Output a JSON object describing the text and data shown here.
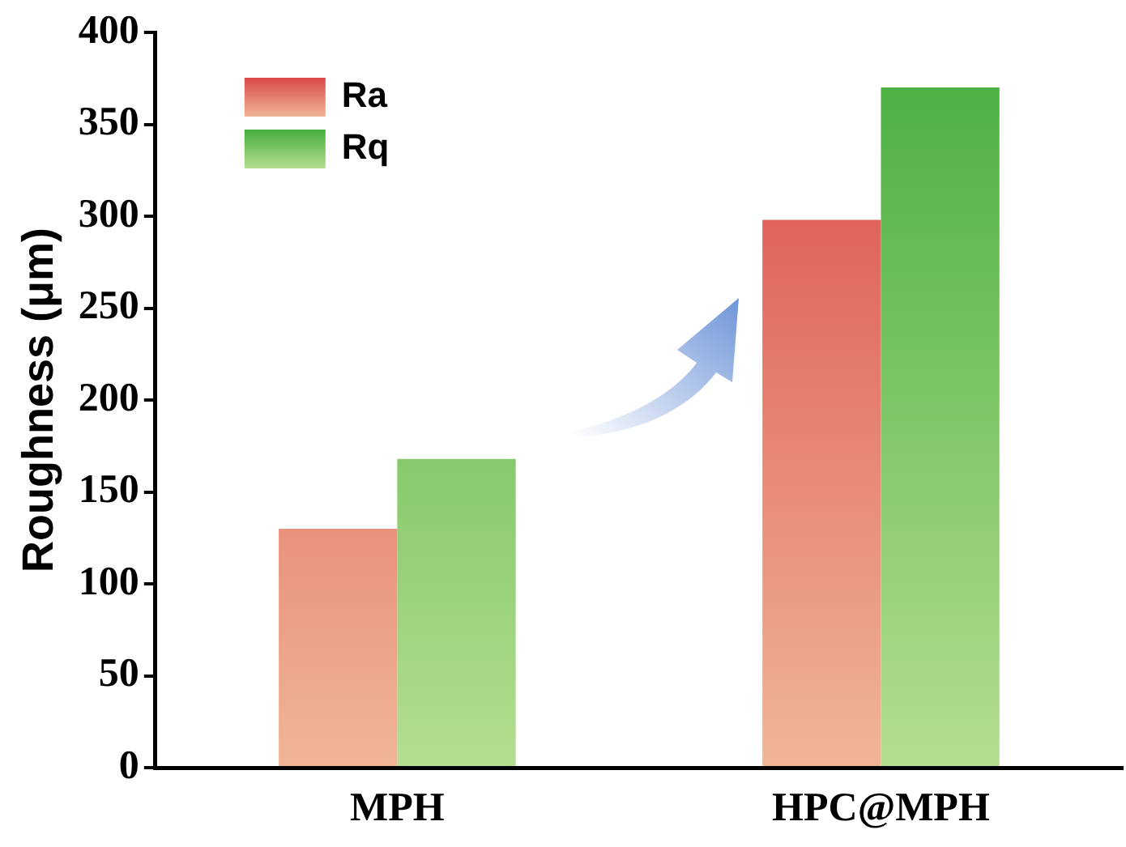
{
  "chart_data": {
    "type": "bar",
    "ylabel": "Roughness (μm)",
    "categories": [
      "MPH",
      "HPC@MPH"
    ],
    "series": [
      {
        "name": "Ra",
        "color": "#d94848",
        "values": [
          130,
          298
        ]
      },
      {
        "name": "Rq",
        "color": "#45ad3c",
        "values": [
          168,
          370
        ]
      }
    ],
    "ylim": [
      0,
      400
    ],
    "yticks": [
      0,
      50,
      100,
      150,
      200,
      250,
      300,
      350,
      400
    ],
    "grid": false,
    "legend": "top left"
  }
}
